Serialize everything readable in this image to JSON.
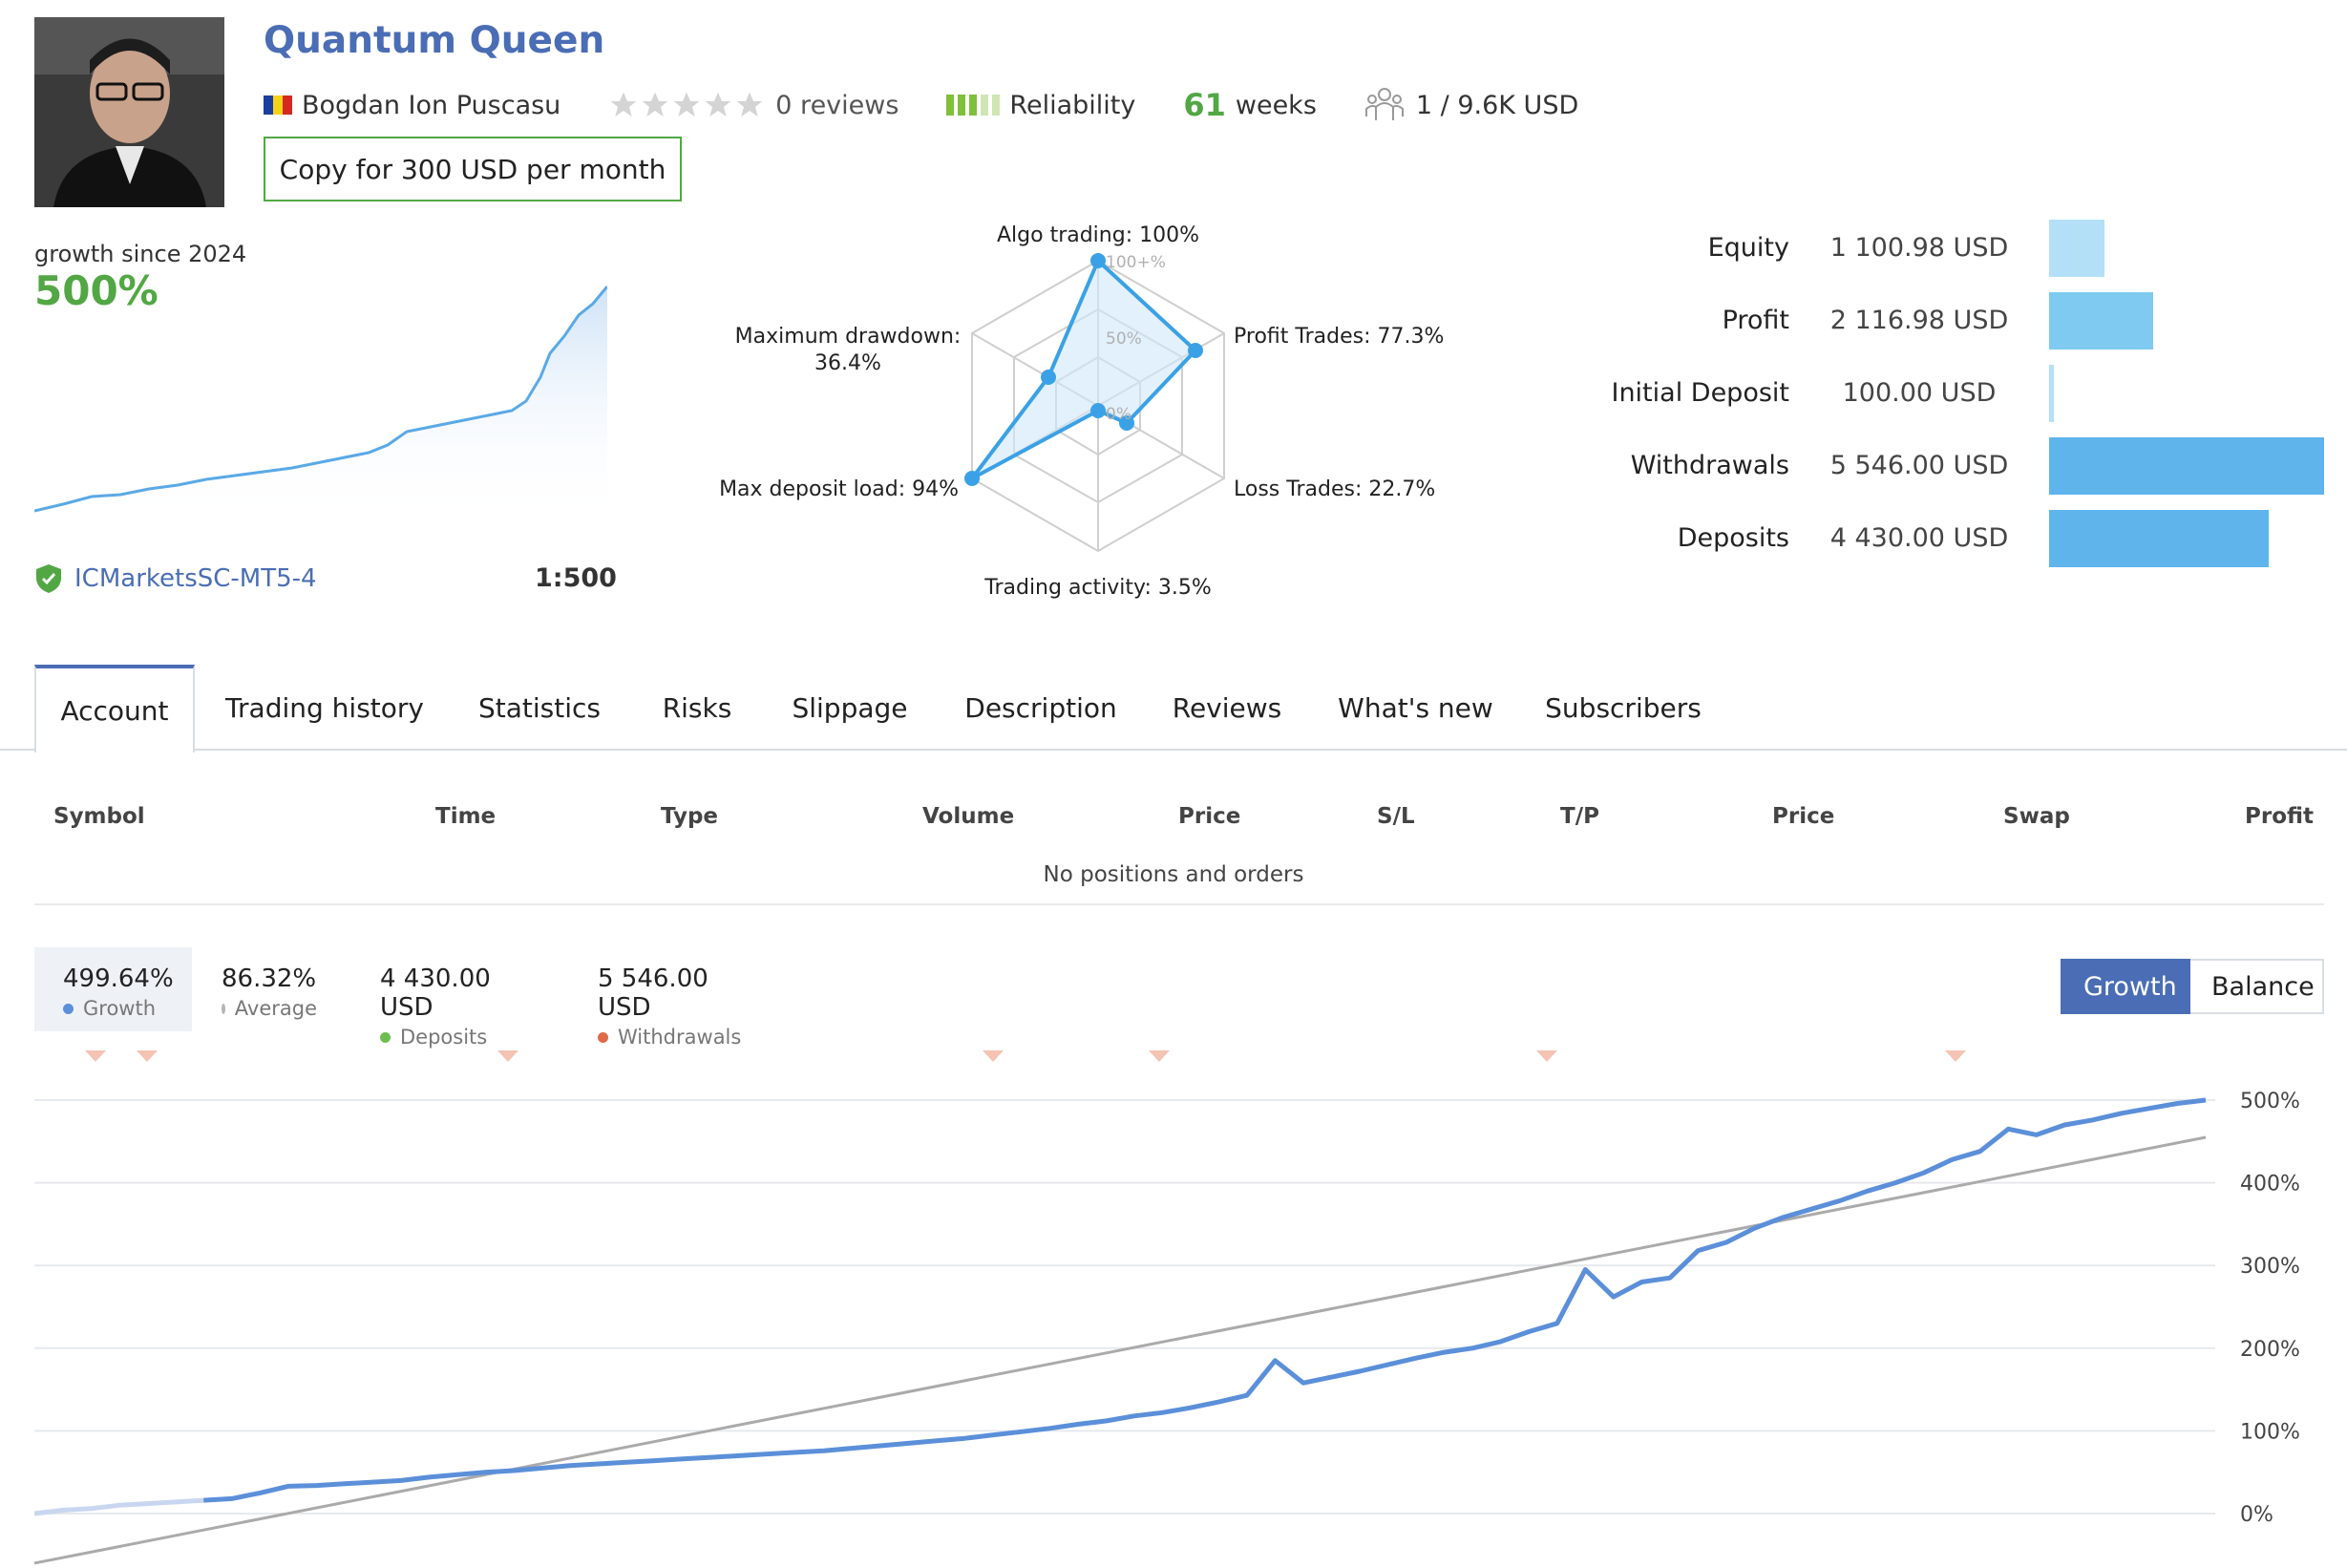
{
  "header": {
    "title": "Quantum Queen",
    "author": "Bogdan Ion Puscasu",
    "reviews": "0 reviews",
    "reliability_label": "Reliability",
    "weeks_value": "61",
    "weeks_label": "weeks",
    "subscribers": "1 / 9.6K USD",
    "copy_button": "Copy for 300 USD per month",
    "colors": {
      "title": "#4a6db5",
      "accent_green": "#52a744"
    }
  },
  "growth_summary": {
    "label": "growth since 2024",
    "value": "500%",
    "broker": "ICMarketsSC-MT5-4",
    "leverage": "1:500"
  },
  "radar": {
    "algo": "Algo trading: 100%",
    "profit_trades": "Profit Trades: 77.3%",
    "loss_trades": "Loss Trades: 22.7%",
    "trading_activity": "Trading activity: 3.5%",
    "max_deposit_load": "Max deposit load: 94%",
    "max_drawdown_1": "Maximum drawdown:",
    "max_drawdown_2": "36.4%",
    "tick_100": "100+%",
    "tick_50": "50%",
    "tick_0": "0%"
  },
  "stats": [
    {
      "label": "Equity",
      "value": "1 100.98 USD",
      "fraction": 0.2,
      "color": "#b3e0f7"
    },
    {
      "label": "Profit",
      "value": "2 116.98 USD",
      "fraction": 0.38,
      "color": "#7fcaf0"
    },
    {
      "label": "Initial Deposit",
      "value": "100.00 USD",
      "fraction": 0.018,
      "color": "#b3e0f7"
    },
    {
      "label": "Withdrawals",
      "value": "5 546.00 USD",
      "fraction": 1.0,
      "color": "#5fb4eb"
    },
    {
      "label": "Deposits",
      "value": "4 430.00 USD",
      "fraction": 0.8,
      "color": "#5fb4eb"
    }
  ],
  "tabs": [
    "Account",
    "Trading history",
    "Statistics",
    "Risks",
    "Slippage",
    "Description",
    "Reviews",
    "What's new",
    "Subscribers"
  ],
  "table": {
    "headers": [
      "Symbol",
      "Time",
      "Type",
      "Volume",
      "Price",
      "S/L",
      "T/P",
      "Price",
      "Swap",
      "Profit"
    ],
    "empty": "No positions and orders"
  },
  "legend": [
    {
      "value": "499.64%",
      "label": "Growth",
      "color": "#5b8fd9"
    },
    {
      "value": "86.32%",
      "label": "Average",
      "color": "#b5b5b5"
    },
    {
      "value": "4 430.00 USD",
      "label": "Deposits",
      "color": "#6cbf4f"
    },
    {
      "value": "5 546.00 USD",
      "label": "Withdrawals",
      "color": "#e06b4a"
    }
  ],
  "chart_buttons": {
    "growth": "Growth",
    "balance": "Balance"
  },
  "chart_data": {
    "type": "line",
    "y_tick_labels": [
      "500%",
      "400%",
      "300%",
      "200%",
      "100%",
      "0%"
    ],
    "ylim": [
      -60,
      500
    ],
    "series": [
      {
        "name": "Growth",
        "values": [
          0,
          4,
          6,
          10,
          12,
          14,
          16,
          18,
          25,
          33,
          34,
          36,
          38,
          40,
          44,
          47,
          50,
          52,
          55,
          58,
          60,
          62,
          64,
          66,
          68,
          70,
          72,
          74,
          76,
          79,
          82,
          85,
          88,
          91,
          95,
          99,
          103,
          108,
          112,
          118,
          122,
          128,
          135,
          143,
          185,
          158,
          165,
          172,
          180,
          188,
          195,
          200,
          208,
          220,
          230,
          295,
          262,
          280,
          285,
          318,
          328,
          345,
          358,
          368,
          378,
          390,
          400,
          412,
          428,
          438,
          465,
          458,
          470,
          476,
          484,
          490,
          496,
          500
        ]
      },
      {
        "name": "Average",
        "values": [
          -60,
          455
        ]
      }
    ],
    "withdrawal_markers": 7
  }
}
